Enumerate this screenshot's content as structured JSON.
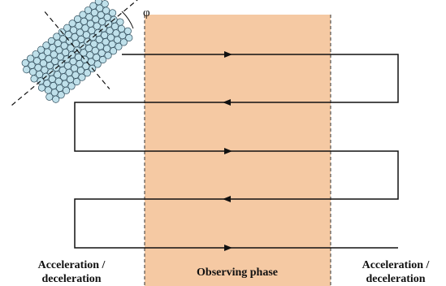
{
  "angle_label": "φ",
  "regions": {
    "left": {
      "line1": "Acceleration /",
      "line2": "deceleration"
    },
    "center": "Observing phase",
    "right": {
      "line1": "Acceleration /",
      "line2": "deceleration"
    }
  }
}
